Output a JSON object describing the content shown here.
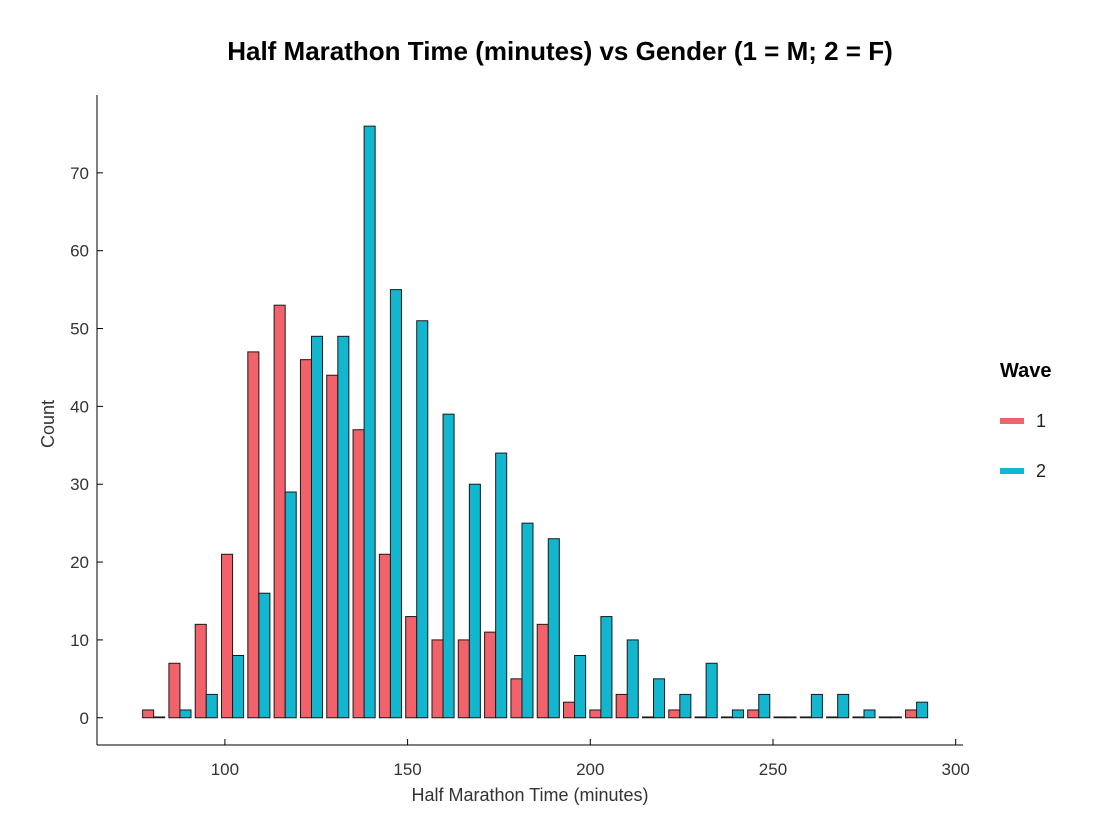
{
  "chart_data": {
    "type": "bar",
    "title": "Half Marathon Time (minutes) vs Gender (1 = M; 2 = F)",
    "xlabel": "Half Marathon Time (minutes)",
    "ylabel": "Count",
    "xlim": [
      65,
      302
    ],
    "ylim": [
      -3.5,
      80
    ],
    "xticks": [
      100,
      150,
      200,
      250,
      300
    ],
    "yticks": [
      0,
      10,
      20,
      30,
      40,
      50,
      60,
      70
    ],
    "grid": false,
    "legend": {
      "title": "Wave",
      "placement": "right"
    },
    "bin_width": 7.2,
    "bin_centers": [
      80.5,
      87.7,
      94.9,
      102.1,
      109.3,
      116.5,
      123.7,
      130.9,
      138.1,
      145.3,
      152.5,
      159.7,
      166.9,
      174.1,
      181.3,
      188.5,
      195.7,
      202.9,
      210.1,
      217.3,
      224.5,
      231.7,
      238.9,
      246.1,
      253.3,
      260.5,
      267.7,
      274.9,
      282.1,
      289.3
    ],
    "series": [
      {
        "name": "1",
        "color": "#f2626b",
        "values": [
          1,
          7,
          12,
          21,
          47,
          53,
          46,
          44,
          37,
          21,
          13,
          10,
          10,
          11,
          5,
          12,
          2,
          1,
          3,
          0,
          1,
          0,
          0,
          1,
          0,
          0,
          0,
          0,
          0,
          1
        ]
      },
      {
        "name": "2",
        "color": "#12b6cf",
        "values": [
          0,
          1,
          3,
          8,
          16,
          29,
          49,
          49,
          76,
          55,
          51,
          39,
          30,
          34,
          25,
          23,
          8,
          13,
          10,
          5,
          3,
          7,
          1,
          3,
          0,
          3,
          3,
          1,
          0,
          2
        ]
      }
    ]
  }
}
